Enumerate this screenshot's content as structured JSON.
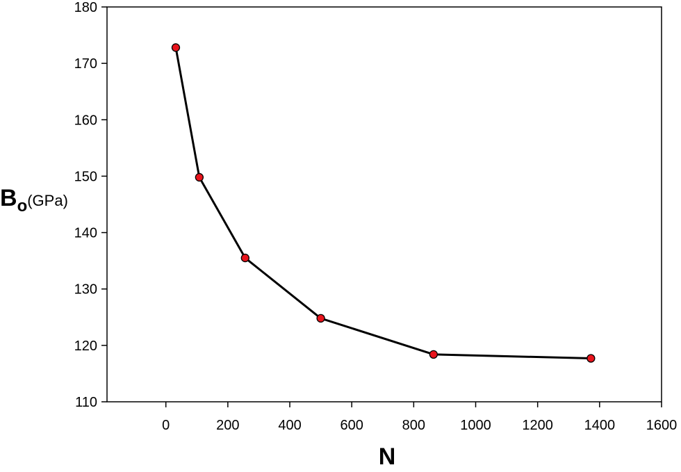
{
  "chart_data": {
    "type": "line",
    "title": "",
    "xlabel": "N",
    "ylabel": {
      "symbol": "B",
      "subscript": "o",
      "unit": "(GPa)"
    },
    "xlim": [
      -190,
      1600
    ],
    "ylim": [
      110,
      180
    ],
    "xticks": [
      0,
      200,
      400,
      600,
      800,
      1000,
      1200,
      1400,
      1600
    ],
    "yticks": [
      110,
      120,
      130,
      140,
      150,
      160,
      170,
      180
    ],
    "grid": false,
    "legend": "none",
    "series": [
      {
        "color": "#000000",
        "marker_color": "#e8141c",
        "points": [
          {
            "x": 32,
            "y": 172.8
          },
          {
            "x": 108,
            "y": 149.8
          },
          {
            "x": 256,
            "y": 135.5
          },
          {
            "x": 500,
            "y": 124.8
          },
          {
            "x": 864,
            "y": 118.4
          },
          {
            "x": 1372,
            "y": 117.7
          }
        ]
      }
    ]
  }
}
